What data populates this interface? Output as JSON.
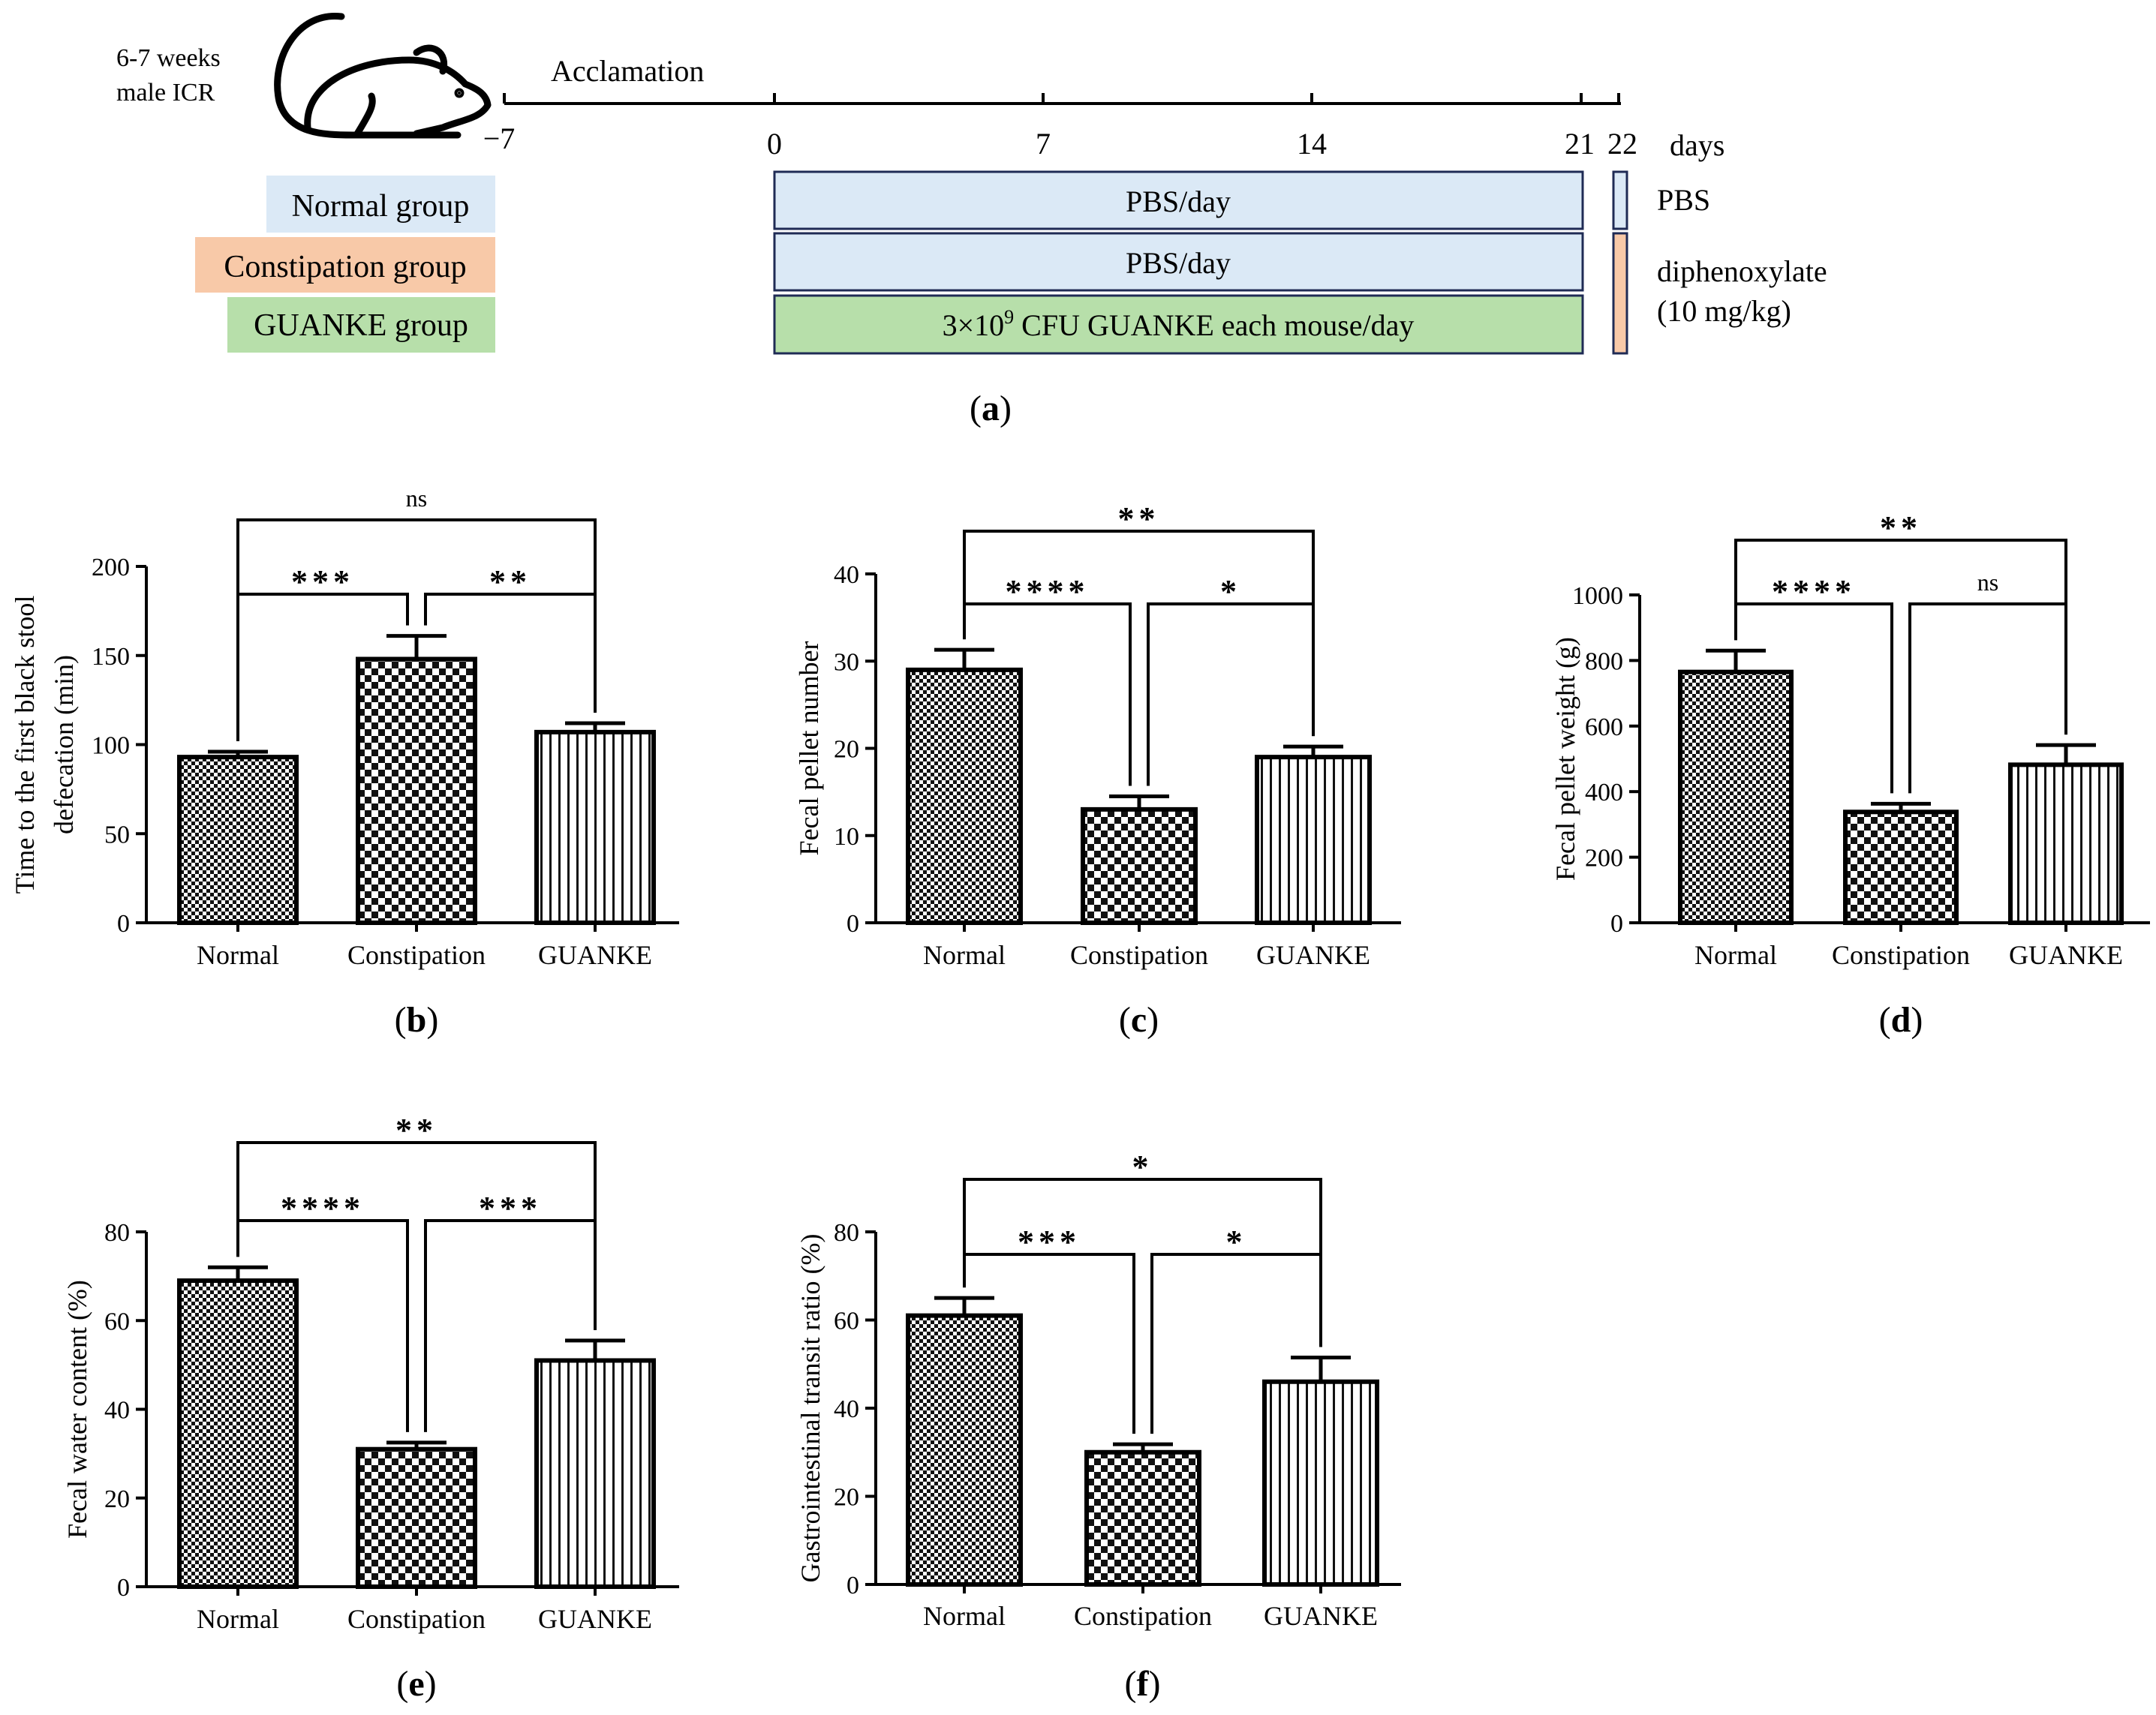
{
  "colors": {
    "normal_fill": "#dbe9f6",
    "normal_edge": "#5b8fc4",
    "constipation_fill": "#f8c9a8",
    "guanke_fill": "#b7dfaa",
    "timeline_edge": "#1f2b55",
    "ink": "#000000"
  },
  "panel_a": {
    "mouse_label_line1": "6-7 weeks",
    "mouse_label_line2": "male ICR",
    "mouse_icon": "mouse-icon",
    "acclimation_label": "Acclamation",
    "ticks": [
      "−7",
      "0",
      "7",
      "14",
      "21",
      "22"
    ],
    "days_label": "days",
    "groups": [
      {
        "label": "Normal group",
        "treatment": "PBS/day"
      },
      {
        "label": "Constipation group",
        "treatment": "PBS/day"
      },
      {
        "label": "GUANKE group",
        "treatment_prefix": "3×10",
        "treatment_exp": "9",
        "treatment_suffix": " CFU GUANKE each mouse/day"
      }
    ],
    "day22_normal": "PBS",
    "day22_drug_line1": "diphenoxylate",
    "day22_drug_line2": "(10 mg/kg)",
    "caption": "a"
  },
  "chart_data": [
    {
      "panel": "b",
      "type": "bar",
      "categories": [
        "Normal",
        "Constipation",
        "GUANKE"
      ],
      "values": [
        93,
        148,
        107
      ],
      "errors": [
        3,
        13,
        5
      ],
      "ylabel_line1": "Time to the first black stool",
      "ylabel_line2": "defecation (min)",
      "ylim": [
        0,
        200
      ],
      "yticks": [
        0,
        50,
        100,
        150,
        200
      ],
      "comparisons": [
        {
          "from": 0,
          "to": 2,
          "label": "ns"
        },
        {
          "from": 0,
          "to": 1,
          "label": "***"
        },
        {
          "from": 1,
          "to": 2,
          "label": "**"
        }
      ],
      "caption": "b"
    },
    {
      "panel": "c",
      "type": "bar",
      "categories": [
        "Normal",
        "Constipation",
        "GUANKE"
      ],
      "values": [
        29,
        13,
        19
      ],
      "errors": [
        2.3,
        1.5,
        1.2
      ],
      "ylabel_line1": "Fecal pellet number",
      "ylabel_line2": "",
      "ylim": [
        0,
        40
      ],
      "yticks": [
        0,
        10,
        20,
        30,
        40
      ],
      "comparisons": [
        {
          "from": 0,
          "to": 2,
          "label": "**"
        },
        {
          "from": 0,
          "to": 1,
          "label": "****"
        },
        {
          "from": 1,
          "to": 2,
          "label": "*"
        }
      ],
      "caption": "c"
    },
    {
      "panel": "d",
      "type": "bar",
      "categories": [
        "Normal",
        "Constipation",
        "GUANKE"
      ],
      "values": [
        765,
        338,
        482
      ],
      "errors": [
        65,
        25,
        60
      ],
      "ylabel_line1": "Fecal pellet weight (g)",
      "ylabel_line2": "",
      "ylim": [
        0,
        1000
      ],
      "yticks": [
        0,
        200,
        400,
        600,
        800,
        1000
      ],
      "comparisons": [
        {
          "from": 0,
          "to": 2,
          "label": "**"
        },
        {
          "from": 0,
          "to": 1,
          "label": "****"
        },
        {
          "from": 1,
          "to": 2,
          "label": "ns"
        }
      ],
      "caption": "d"
    },
    {
      "panel": "e",
      "type": "bar",
      "categories": [
        "Normal",
        "Constipation",
        "GUANKE"
      ],
      "values": [
        69,
        31,
        51
      ],
      "errors": [
        3,
        1.5,
        4.5
      ],
      "ylabel_line1": "Fecal water content (%)",
      "ylabel_line2": "",
      "ylim": [
        0,
        80
      ],
      "yticks": [
        0,
        20,
        40,
        60,
        80
      ],
      "comparisons": [
        {
          "from": 0,
          "to": 2,
          "label": "**"
        },
        {
          "from": 0,
          "to": 1,
          "label": "****"
        },
        {
          "from": 1,
          "to": 2,
          "label": "***"
        }
      ],
      "caption": "e"
    },
    {
      "panel": "f",
      "type": "bar",
      "categories": [
        "Normal",
        "Constipation",
        "GUANKE"
      ],
      "values": [
        61,
        30,
        46
      ],
      "errors": [
        4,
        1.8,
        5.5
      ],
      "ylabel_line1": "Gastrointestinal transit ratio (%)",
      "ylabel_line2": "",
      "ylim": [
        0,
        80
      ],
      "yticks": [
        0,
        20,
        40,
        60,
        80
      ],
      "comparisons": [
        {
          "from": 0,
          "to": 2,
          "label": "*"
        },
        {
          "from": 0,
          "to": 1,
          "label": "***"
        },
        {
          "from": 1,
          "to": 2,
          "label": "*"
        }
      ],
      "caption": "f"
    }
  ]
}
